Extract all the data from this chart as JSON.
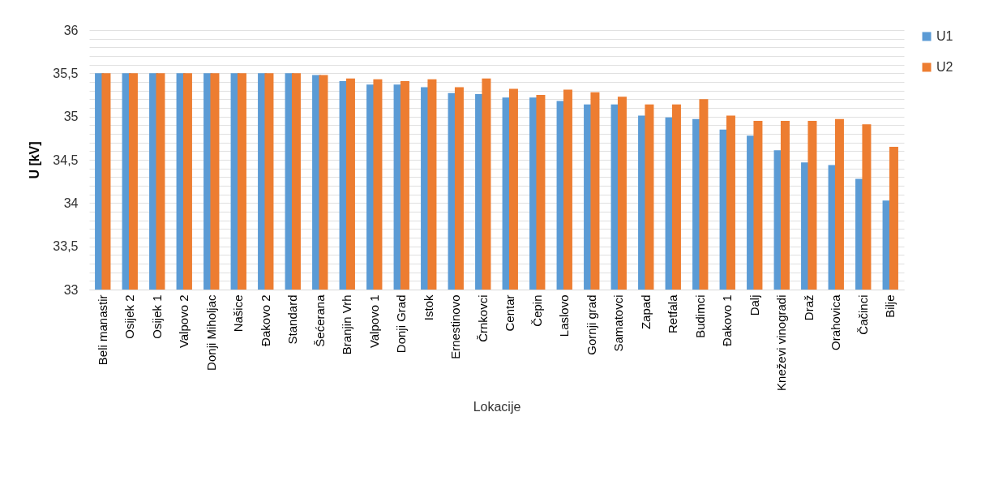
{
  "chart_data": {
    "type": "bar",
    "xlabel": "Lokacije",
    "ylabel": "U [kV]",
    "categories": [
      "Beli manastir",
      "Osijek 2",
      "Osijek 1",
      "Valpovo 2",
      "Donji Miholjac",
      "Našice",
      "Đakovo 2",
      "Standard",
      "Šećerana",
      "Branjin Vrh",
      "Valpovo 1",
      "Donji Grad",
      "Istok",
      "Ernestinovo",
      "Črnkovci",
      "Centar",
      "Čepin",
      "Laslovo",
      "Gornji grad",
      "Samatovci",
      "Zapad",
      "Retfala",
      "Budimci",
      "Đakovo 1",
      "Dalj",
      "Kneževi vinogradi",
      "Draž",
      "Orahovica",
      "Čačinci",
      "Bilje"
    ],
    "series": [
      {
        "name": "U1",
        "color": "#5b9bd5",
        "values": [
          35.5,
          35.5,
          35.5,
          35.5,
          35.5,
          35.5,
          35.5,
          35.5,
          35.48,
          35.41,
          35.37,
          35.37,
          35.34,
          35.27,
          35.26,
          35.22,
          35.22,
          35.18,
          35.14,
          35.14,
          35.01,
          34.99,
          34.97,
          34.85,
          34.78,
          34.61,
          34.47,
          34.44,
          34.28,
          34.03
        ]
      },
      {
        "name": "U2",
        "color": "#ed7d31",
        "values": [
          35.5,
          35.5,
          35.5,
          35.5,
          35.5,
          35.5,
          35.5,
          35.5,
          35.48,
          35.44,
          35.43,
          35.41,
          35.43,
          35.34,
          35.44,
          35.32,
          35.25,
          35.31,
          35.28,
          35.23,
          35.14,
          35.14,
          35.2,
          35.01,
          34.95,
          34.95,
          34.95,
          34.97,
          34.91,
          34.65
        ]
      }
    ],
    "ylim": [
      33,
      36
    ],
    "yticks": [
      {
        "value": 33,
        "label": "33"
      },
      {
        "value": 33.1,
        "label": null
      },
      {
        "value": 33.2,
        "label": null
      },
      {
        "value": 33.3,
        "label": null
      },
      {
        "value": 33.4,
        "label": null
      },
      {
        "value": 33.5,
        "label": "33,5"
      },
      {
        "value": 33.6,
        "label": null
      },
      {
        "value": 33.7,
        "label": null
      },
      {
        "value": 33.8,
        "label": null
      },
      {
        "value": 33.9,
        "label": null
      },
      {
        "value": 34,
        "label": "34"
      },
      {
        "value": 34.1,
        "label": null
      },
      {
        "value": 34.2,
        "label": null
      },
      {
        "value": 34.3,
        "label": null
      },
      {
        "value": 34.4,
        "label": null
      },
      {
        "value": 34.5,
        "label": "34,5"
      },
      {
        "value": 34.6,
        "label": null
      },
      {
        "value": 34.7,
        "label": null
      },
      {
        "value": 34.8,
        "label": null
      },
      {
        "value": 34.9,
        "label": null
      },
      {
        "value": 35,
        "label": "35"
      },
      {
        "value": 35.1,
        "label": null
      },
      {
        "value": 35.2,
        "label": null
      },
      {
        "value": 35.3,
        "label": null
      },
      {
        "value": 35.4,
        "label": null
      },
      {
        "value": 35.5,
        "label": "35,5"
      },
      {
        "value": 35.6,
        "label": null
      },
      {
        "value": 35.7,
        "label": null
      },
      {
        "value": 35.8,
        "label": null
      },
      {
        "value": 35.9,
        "label": null
      },
      {
        "value": 36,
        "label": "36"
      }
    ],
    "grid": "y",
    "legend": "right"
  }
}
